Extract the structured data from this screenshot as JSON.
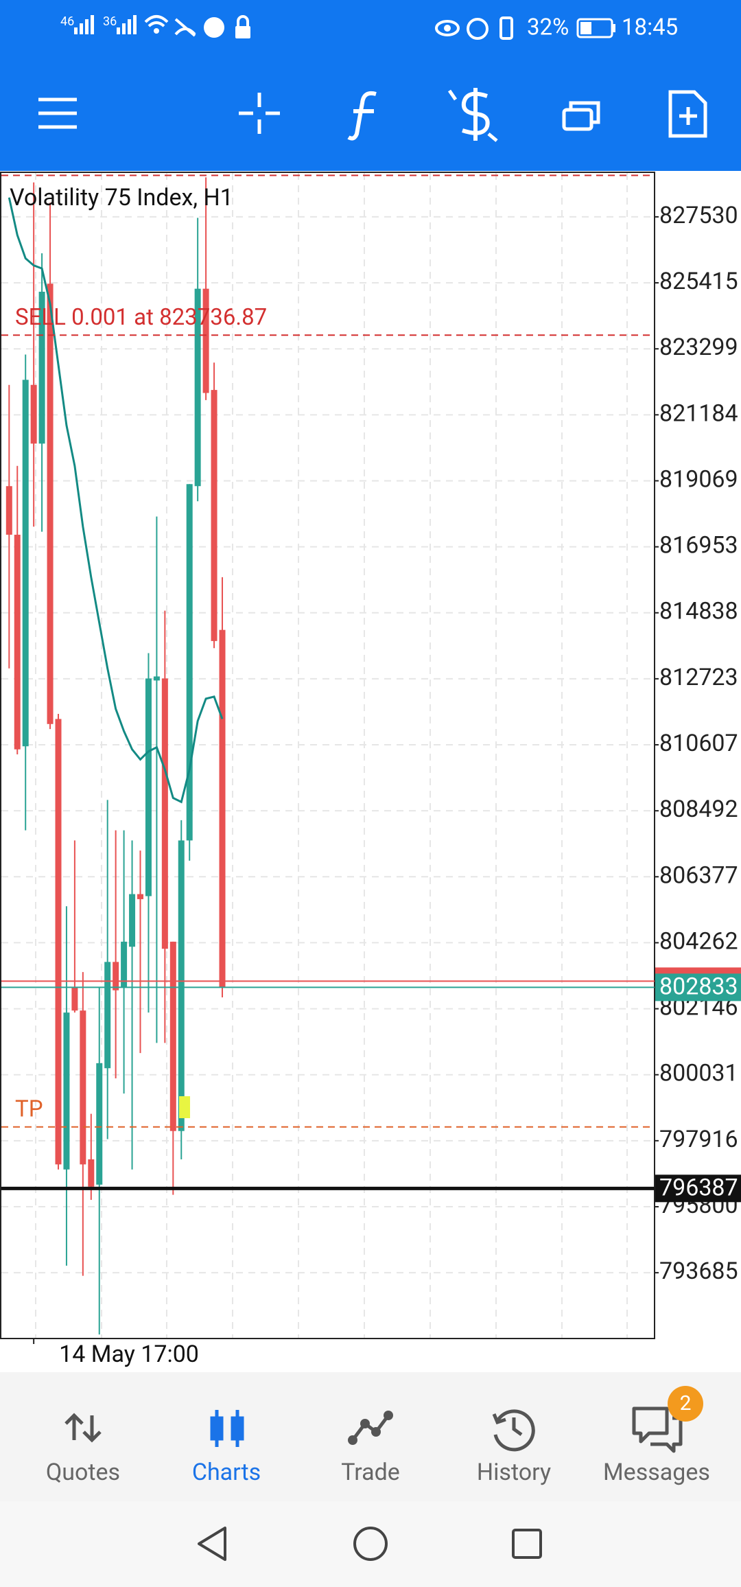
{
  "status_bar": {
    "network_1": "46",
    "network_2": "36",
    "battery": "32%",
    "time": "18:45"
  },
  "chart_data": {
    "type": "candlestick",
    "title": "Volatility 75 Index, H1",
    "categories": [
      null,
      null,
      null,
      "14 May 17:00",
      null,
      null,
      null,
      null,
      null,
      null,
      null,
      null,
      null,
      null,
      null,
      null,
      null,
      null,
      null,
      null,
      null,
      null,
      null,
      null,
      null,
      null,
      null
    ],
    "open": [
      818898,
      817341,
      810559,
      822143,
      820261,
      825388,
      811435,
      796995,
      802836,
      802089,
      797319,
      796508,
      800240,
      803647,
      802836,
      804134,
      805821,
      805756,
      812668,
      812733,
      804296,
      798227,
      807541,
      818898,
      825226,
      821981,
      814290
    ],
    "high": [
      822143,
      819547,
      823117,
      828633,
      826362,
      827984,
      811597,
      805432,
      807541,
      803322,
      798779,
      802836,
      808839,
      807865,
      807865,
      807541,
      807216,
      813544,
      817925,
      814907,
      804296,
      808190,
      818963,
      827498,
      828796,
      822857,
      815978
    ],
    "low": [
      813057,
      810299,
      807865,
      817600,
      817438,
      811110,
      796995,
      793912,
      802024,
      793587,
      796021,
      791705,
      797968,
      799915,
      799428,
      796995,
      800726,
      802024,
      801051,
      801051,
      796183,
      797319,
      806892,
      818412,
      821657,
      813706,
      802511
    ],
    "close": [
      817341,
      810461,
      822306,
      820261,
      825129,
      811273,
      797157,
      802024,
      802089,
      797157,
      796443,
      800402,
      803647,
      802738,
      804296,
      805821,
      805659,
      812733,
      812798,
      804069,
      798227,
      807541,
      818963,
      825226,
      821884,
      813933,
      802836
    ],
    "up_color": "#2aa394",
    "down_color": "#e85252",
    "ma": {
      "values": [
        828147,
        826946,
        826200,
        825972,
        825875,
        824739,
        822792,
        820845,
        819547,
        817600,
        815978,
        814517,
        813057,
        811759,
        811045,
        810461,
        810137,
        810396,
        810526,
        809812,
        808904,
        808774,
        809812,
        811370,
        812084,
        812149,
        811435
      ],
      "color": "#138a84"
    },
    "ylim": [
      791576,
      828958
    ],
    "yticks": [
      827530,
      825415,
      823299,
      821184,
      819069,
      816953,
      814838,
      812723,
      810607,
      808492,
      806377,
      804262,
      802146,
      800031,
      797916,
      795800,
      793685
    ],
    "grid": true,
    "order_lines": [
      {
        "value": 828860,
        "color": "#d32f2f"
      },
      {
        "label": "SELL 0.001 at 823736.87",
        "value": 823736.87,
        "color": "#d32f2f"
      },
      {
        "label": "TP",
        "value": 798357,
        "color": "#e0622a"
      }
    ],
    "ask": {
      "value": 803030,
      "color": "#e85252"
    },
    "bid": {
      "value": 802833,
      "color": "#2aa394"
    },
    "last": {
      "value": 796387,
      "color": "#111111"
    }
  },
  "bottom_nav": [
    "Quotes",
    "Charts",
    "Trade",
    "History",
    "Messages"
  ],
  "badge": 2
}
